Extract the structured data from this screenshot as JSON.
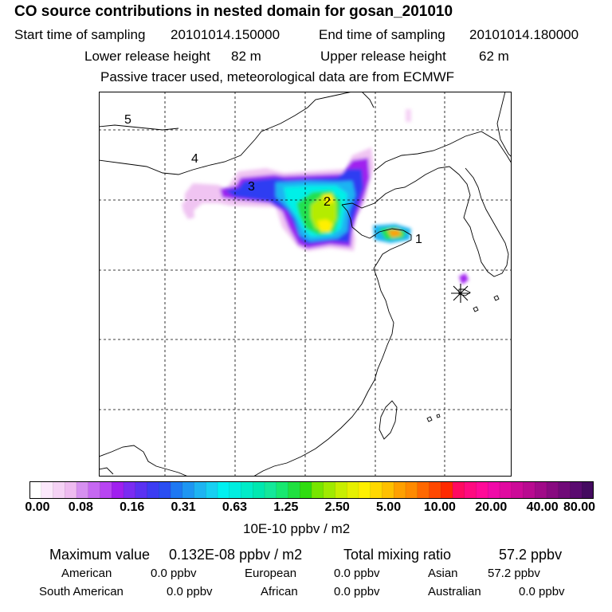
{
  "header": {
    "title": "CO  source contributions in nested domain for gosan_201010",
    "start_label": "Start time of sampling",
    "start_value": "20101014.150000",
    "end_label": "End time of sampling",
    "end_value": "20101014.180000",
    "lower_label": "Lower release height",
    "lower_value": "82 m",
    "upper_label": "Upper release height",
    "upper_value": "62 m",
    "tracer_note": "Passive tracer used, meteorological data are from ECMWF"
  },
  "map": {
    "region_labels": [
      "1",
      "2",
      "3",
      "4",
      "5"
    ],
    "receptor_marker": "asterisk-receptor"
  },
  "colorbar": {
    "tick_labels": [
      "0.00",
      "0.08",
      "0.16",
      "0.31",
      "0.63",
      "1.25",
      "2.50",
      "5.00",
      "10.00",
      "20.00",
      "40.00",
      "80.00"
    ],
    "unit": "10E-10 ppbv / m2",
    "colors": [
      "#ffffff",
      "#fbe8fb",
      "#f5d2f5",
      "#eebbf0",
      "#d690f0",
      "#c668f2",
      "#b845f2",
      "#a020ef",
      "#7a2cf2",
      "#5a32f2",
      "#3c3cf2",
      "#2a4ef2",
      "#1e78f2",
      "#1e96f2",
      "#1eb4f2",
      "#18d0f2",
      "#00f0f0",
      "#00eee0",
      "#00ecc8",
      "#00e8b0",
      "#14e89a",
      "#18e870",
      "#20e040",
      "#30dc10",
      "#78e600",
      "#a0ea00",
      "#c8ee00",
      "#e6f000",
      "#fff000",
      "#ffd800",
      "#ffc000",
      "#ffa000",
      "#ff8a00",
      "#ff6800",
      "#ff4800",
      "#ff2a00",
      "#ff0a60",
      "#ff0a80",
      "#ff0a98",
      "#f00aa8",
      "#e00aa0",
      "#cc0a98",
      "#b80a90",
      "#a00a88",
      "#880a80",
      "#700a78",
      "#5a0a70",
      "#440a60"
    ]
  },
  "footer": {
    "max_label": "Maximum value",
    "max_value": "0.132E-08 ppbv / m2",
    "total_label": "Total mixing ratio",
    "total_value": "57.2 ppbv",
    "american_label": "American",
    "american_value": "0.0 ppbv",
    "european_label": "European",
    "european_value": "0.0 ppbv",
    "asian_label": "Asian",
    "asian_value": "57.2 ppbv",
    "south_american_label": "South American",
    "south_american_value": "0.0 ppbv",
    "african_label": "African",
    "african_value": "0.0 ppbv",
    "australian_label": "Australian",
    "australian_value": "0.0 ppbv"
  }
}
